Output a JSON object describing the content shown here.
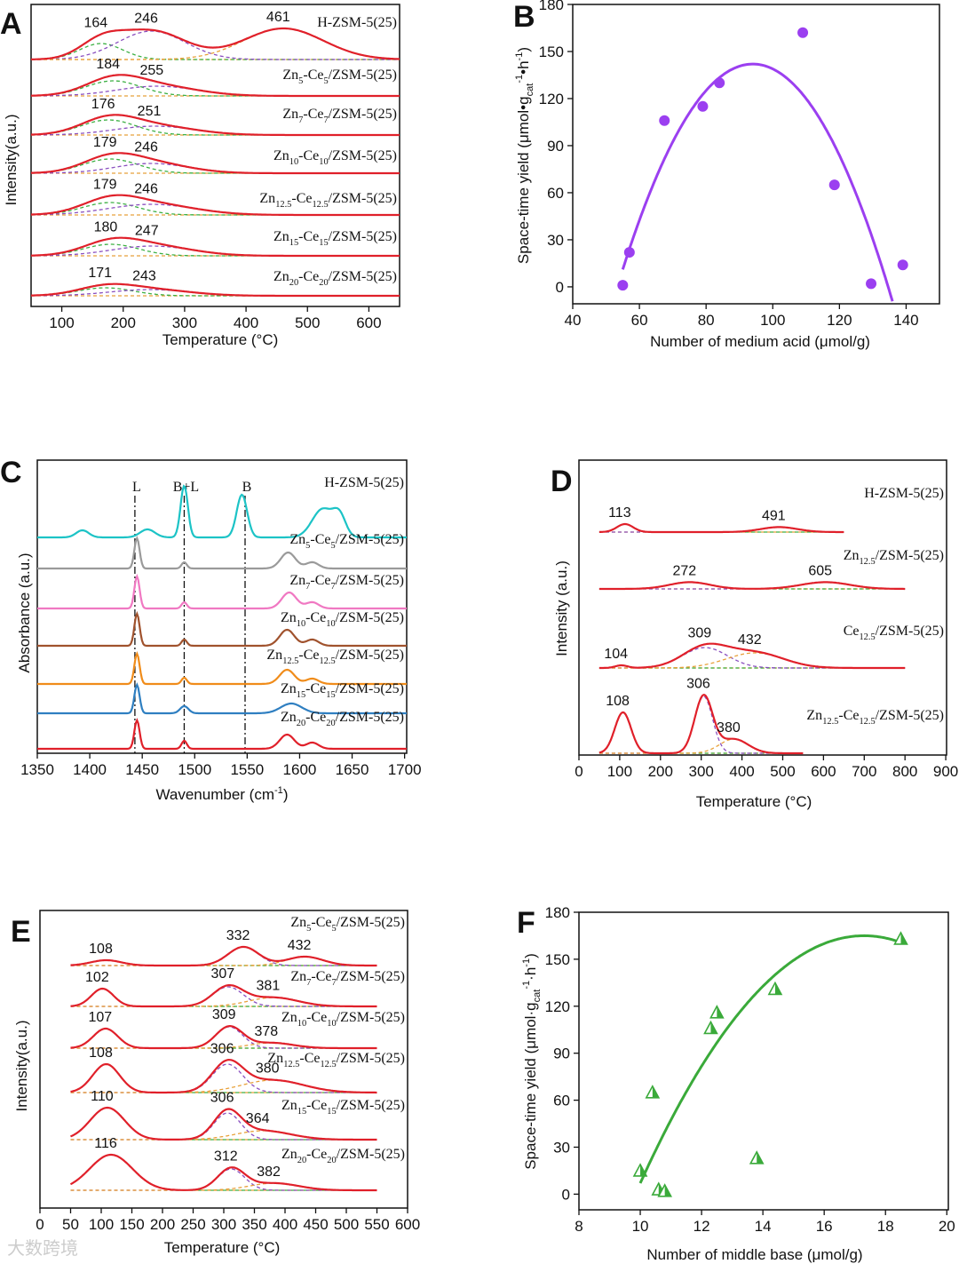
{
  "chart_data": [
    {
      "panel": "A",
      "type": "line",
      "xlabel": "Temperature (°C)",
      "ylabel": "Intensity(a.u.)",
      "xlim": [
        50,
        650
      ],
      "xticks": [
        100,
        200,
        300,
        400,
        500,
        600
      ],
      "x_range": [
        50,
        650
      ],
      "series": [
        {
          "name": "H-ZSM-5(25)",
          "peaks": [
            [
              164,
              0.9,
              35
            ],
            [
              246,
              1.6,
              55
            ],
            [
              461,
              1.75,
              65
            ]
          ],
          "labels": [
            164,
            246,
            461
          ]
        },
        {
          "name": "Zn_{5}-Ce_{5}/ZSM-5(25)",
          "peaks": [
            [
              184,
              0.85,
              45
            ],
            [
              255,
              0.55,
              65
            ]
          ],
          "labels": [
            184,
            255
          ]
        },
        {
          "name": "Zn_{7}-Ce_{7}/ZSM-5(25)",
          "peaks": [
            [
              176,
              0.85,
              45
            ],
            [
              251,
              0.5,
              65
            ]
          ],
          "labels": [
            176,
            251
          ]
        },
        {
          "name": "Zn_{10}-Ce_{10}/ZSM-5(25)",
          "peaks": [
            [
              179,
              0.8,
              45
            ],
            [
              246,
              0.55,
              60
            ]
          ],
          "labels": [
            179,
            246
          ]
        },
        {
          "name": "Zn_{12.5}-Ce_{12.5}/ZSM-5(25)",
          "peaks": [
            [
              179,
              0.7,
              45
            ],
            [
              246,
              0.6,
              70
            ]
          ],
          "labels": [
            179,
            246
          ]
        },
        {
          "name": "Zn_{15}-Ce_{15}/ZSM-5(25)",
          "peaks": [
            [
              180,
              0.65,
              45
            ],
            [
              247,
              0.55,
              65
            ]
          ],
          "labels": [
            180,
            247
          ]
        },
        {
          "name": "Zn_{20}-Ce_{20}/ZSM-5(25)",
          "peaks": [
            [
              171,
              0.45,
              45
            ],
            [
              243,
              0.35,
              65
            ]
          ],
          "labels": [
            171,
            243
          ]
        }
      ]
    },
    {
      "panel": "B",
      "type": "scatter",
      "xlabel": "Number of medium acid  (μmol/g)",
      "ylabel": "Space-time yield (μmol•g_{cat}^{-1}•h^{-1})",
      "xlim": [
        40,
        150
      ],
      "ylim": [
        -10.8,
        180
      ],
      "xticks": [
        40,
        60,
        80,
        100,
        120,
        140
      ],
      "yticks": [
        0,
        30,
        60,
        90,
        120,
        150,
        180
      ],
      "color": "#9b3ff0",
      "points": [
        [
          55,
          1
        ],
        [
          57,
          22
        ],
        [
          67.5,
          106
        ],
        [
          79,
          115
        ],
        [
          84,
          130
        ],
        [
          109,
          162
        ],
        [
          118.5,
          65
        ],
        [
          129.5,
          2
        ],
        [
          139,
          14
        ]
      ],
      "fit": {
        "type": "quadratic",
        "vertex": [
          94,
          142
        ],
        "a": -0.0861,
        "x_range": [
          55,
          137
        ]
      }
    },
    {
      "panel": "C",
      "type": "line",
      "xlabel": "Wavenumber (cm^{-1})",
      "ylabel": "Absorbance (a.u.)",
      "xlim": [
        1350,
        1702
      ],
      "xticks": [
        1350,
        1400,
        1450,
        1500,
        1550,
        1600,
        1650,
        1700
      ],
      "x_range": [
        1350,
        1702
      ],
      "markers": [
        {
          "label": "L",
          "x": 1443
        },
        {
          "label": "B+L",
          "x": 1490
        },
        {
          "label": "B",
          "x": 1548
        }
      ],
      "series": [
        {
          "name": "H-ZSM-5(25)",
          "color": "#1cc3c6",
          "peaks": [
            [
              1393,
              0.4,
              6
            ],
            [
              1455,
              0.45,
              7
            ],
            [
              1490,
              2.9,
              3.5
            ],
            [
              1545,
              2.4,
              5
            ],
            [
              1622,
              1.6,
              10
            ],
            [
              1638,
              1.1,
              6
            ]
          ]
        },
        {
          "name": "Zn_{5}-Ce_{5}/ZSM-5(25)",
          "color": "#9a9a9a",
          "peaks": [
            [
              1445,
              1.7,
              2.5
            ],
            [
              1490,
              0.35,
              2.5
            ],
            [
              1589,
              0.9,
              7
            ],
            [
              1612,
              0.35,
              6
            ]
          ]
        },
        {
          "name": "Zn_{7}-Ce_{7}/ZSM-5(25)",
          "color": "#f078c2",
          "peaks": [
            [
              1445,
              1.8,
              2.5
            ],
            [
              1490,
              0.35,
              2.5
            ],
            [
              1590,
              0.9,
              7
            ],
            [
              1612,
              0.35,
              6
            ]
          ]
        },
        {
          "name": "Zn_{10}-Ce_{10}/ZSM-5(25)",
          "color": "#a0522d",
          "peaks": [
            [
              1445,
              1.8,
              2.5
            ],
            [
              1490,
              0.35,
              2.5
            ],
            [
              1588,
              0.9,
              7
            ],
            [
              1612,
              0.35,
              6
            ]
          ]
        },
        {
          "name": "Zn_{12.5}-Ce_{12.5}/ZSM-5(25)",
          "color": "#f08c1a",
          "peaks": [
            [
              1445,
              1.7,
              2.5
            ],
            [
              1490,
              0.35,
              2.5
            ],
            [
              1588,
              0.8,
              7
            ],
            [
              1612,
              0.3,
              6
            ]
          ]
        },
        {
          "name": "Zn_{15}-Ce_{15}/ZSM-5(25)",
          "color": "#2f7fc1",
          "peaks": [
            [
              1445,
              1.6,
              2.5
            ],
            [
              1490,
              0.4,
              4
            ],
            [
              1592,
              0.55,
              10
            ]
          ]
        },
        {
          "name": "Zn_{20}-Ce_{20}/ZSM-5(25)",
          "color": "#e0202a",
          "peaks": [
            [
              1445,
              1.6,
              2.5
            ],
            [
              1490,
              0.45,
              2.5
            ],
            [
              1588,
              0.8,
              7
            ],
            [
              1612,
              0.35,
              6
            ]
          ]
        }
      ]
    },
    {
      "panel": "D",
      "type": "line",
      "xlabel": "Temperature (°C)",
      "ylabel": "Intensity (a.u.)",
      "xlim": [
        0,
        902
      ],
      "xticks": [
        0,
        100,
        200,
        300,
        400,
        500,
        600,
        700,
        800,
        900
      ],
      "series": [
        {
          "name": "H-ZSM-5(25)",
          "x_range": [
            50,
            650
          ],
          "peaks": [
            [
              113,
              0.45,
              20
            ],
            [
              491,
              0.28,
              45
            ]
          ],
          "labels": [
            113,
            491
          ]
        },
        {
          "name": "Zn_{12.5}/ZSM-5(25)",
          "x_range": [
            50,
            800
          ],
          "peaks": [
            [
              272,
              0.38,
              50
            ],
            [
              605,
              0.38,
              60
            ]
          ],
          "labels": [
            272,
            605
          ]
        },
        {
          "name": "Ce_{12.5}/ZSM-5(25)",
          "x_range": [
            50,
            800
          ],
          "peaks": [
            [
              104,
              0.15,
              15
            ],
            [
              309,
              1.15,
              55
            ],
            [
              432,
              0.85,
              70
            ]
          ],
          "labels": [
            104,
            309,
            432
          ]
        },
        {
          "name": "Zn_{12.5}-Ce_{12.5}/ZSM-5(25)",
          "x_range": [
            50,
            550
          ],
          "peaks": [
            [
              108,
              2.3,
              20
            ],
            [
              306,
              3.2,
              22
            ],
            [
              380,
              0.8,
              35
            ]
          ],
          "labels": [
            108,
            306,
            380
          ]
        }
      ]
    },
    {
      "panel": "E",
      "type": "line",
      "xlabel": "Temperature (°C)",
      "ylabel": "Intensity(a.u.)",
      "xlim": [
        0,
        600
      ],
      "xticks": [
        0,
        50,
        100,
        150,
        200,
        250,
        300,
        350,
        400,
        450,
        500,
        550,
        600
      ],
      "x_range": [
        50,
        550
      ],
      "series": [
        {
          "name": "Zn_{5}-Ce_{5}/ZSM-5(25)",
          "peaks": [
            [
              108,
              0.3,
              25
            ],
            [
              332,
              1.05,
              25
            ],
            [
              432,
              0.5,
              30
            ]
          ],
          "labels": [
            108,
            332,
            432
          ]
        },
        {
          "name": "Zn_{7}-Ce_{7}/ZSM-5(25)",
          "peaks": [
            [
              102,
              1.0,
              18
            ],
            [
              307,
              1.1,
              25
            ],
            [
              381,
              0.5,
              40
            ]
          ],
          "labels": [
            102,
            307,
            381
          ]
        },
        {
          "name": "Zn_{10}-Ce_{10}/ZSM-5(25)",
          "peaks": [
            [
              107,
              1.1,
              20
            ],
            [
              309,
              1.2,
              22
            ],
            [
              378,
              0.3,
              35
            ]
          ],
          "labels": [
            107,
            309,
            378
          ]
        },
        {
          "name": "Zn_{12.5}-Ce_{12.5}/ZSM-5(25)",
          "peaks": [
            [
              108,
              1.6,
              22
            ],
            [
              306,
              1.6,
              25
            ],
            [
              380,
              0.7,
              50
            ]
          ],
          "labels": [
            108,
            306,
            380
          ]
        },
        {
          "name": "Zn_{15}-Ce_{15}/ZSM-5(25)",
          "peaks": [
            [
              110,
              1.8,
              28
            ],
            [
              306,
              1.5,
              22
            ],
            [
              364,
              0.5,
              45
            ]
          ],
          "labels": [
            110,
            306,
            364
          ]
        },
        {
          "name": "Zn_{20}-Ce_{20}/ZSM-5(25)",
          "peaks": [
            [
              116,
              2.0,
              35
            ],
            [
              312,
              1.2,
              22
            ],
            [
              382,
              0.4,
              40
            ]
          ],
          "labels": [
            116,
            312,
            382
          ]
        }
      ]
    },
    {
      "panel": "F",
      "type": "scatter",
      "xlabel": "Number of middle base (μmol/g)",
      "ylabel": "Space-time yield (μmol·g_{cat}^{-1}·h^{-1})",
      "xlim": [
        8,
        20.05
      ],
      "ylim": [
        -10,
        180
      ],
      "xticks": [
        8,
        10,
        12,
        14,
        16,
        18,
        20
      ],
      "yticks": [
        0,
        30,
        60,
        90,
        120,
        150,
        180
      ],
      "color": "#3aaa3a",
      "points": [
        [
          10,
          15
        ],
        [
          10.4,
          65
        ],
        [
          10.6,
          3
        ],
        [
          10.8,
          2
        ],
        [
          12.3,
          106
        ],
        [
          12.5,
          116
        ],
        [
          13.8,
          23
        ],
        [
          14.4,
          131
        ],
        [
          18.5,
          163
        ]
      ],
      "fit": {
        "type": "quadratic",
        "vertex": [
          17.3,
          165
        ],
        "a": -2.965,
        "x_range": [
          10,
          18.5
        ]
      }
    }
  ],
  "watermark": "大数跨境"
}
